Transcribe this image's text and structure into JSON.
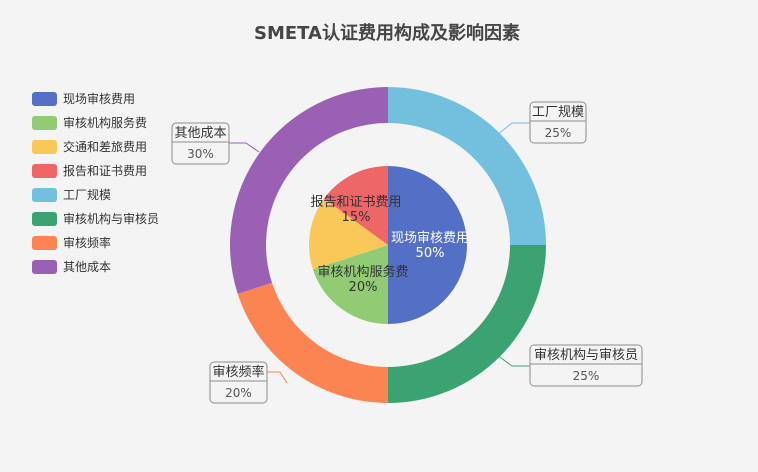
{
  "colors": {
    "background": "#f4f4f4",
    "palette": [
      "#5470c6",
      "#91cc75",
      "#fac858",
      "#ee6666",
      "#73c0de",
      "#3ba272",
      "#fc8452",
      "#9a60b4"
    ]
  },
  "chart_data": {
    "type": "pie",
    "title": "SMETA认证费用构成及影响因素",
    "legend_position": "left",
    "legend": [
      "现场审核费用",
      "审核机构服务费",
      "交通和差旅费用",
      "报告和证书费用",
      "工厂规模",
      "审核机构与审核员",
      "审核频率",
      "其他成本"
    ],
    "series": [
      {
        "kind": "inner-pie",
        "slices": [
          {
            "label": "现场审核费用",
            "value": 50,
            "value_label": "50%"
          },
          {
            "label": "审核机构服务费",
            "value": 20,
            "value_label": "20%"
          },
          {
            "label": "交通和差旅费用",
            "value": 15
          },
          {
            "label": "报告和证书费用",
            "value": 15,
            "value_label": "15%"
          }
        ]
      },
      {
        "kind": "outer-donut",
        "slices": [
          {
            "label": "工厂规模",
            "value": 25,
            "value_label": "25%"
          },
          {
            "label": "审核机构与审核员",
            "value": 25,
            "value_label": "25%"
          },
          {
            "label": "审核频率",
            "value": 20,
            "value_label": "20%"
          },
          {
            "label": "其他成本",
            "value": 30,
            "value_label": "30%"
          }
        ]
      }
    ]
  }
}
